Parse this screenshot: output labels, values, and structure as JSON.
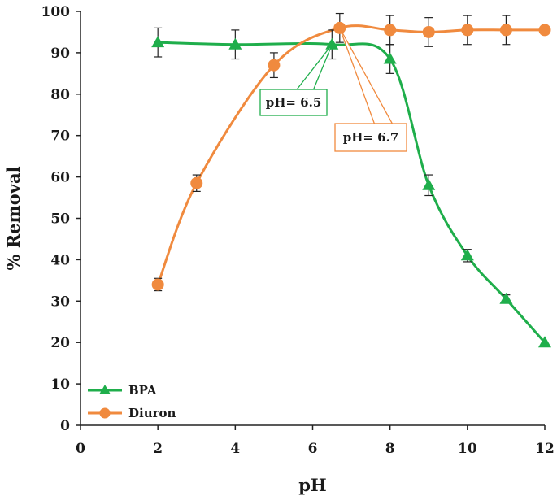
{
  "chart_data": {
    "type": "line",
    "title": "",
    "xlabel": "pH",
    "ylabel": "% Removal",
    "xlim": [
      0,
      12
    ],
    "ylim": [
      0,
      100
    ],
    "xticks": [
      0,
      2,
      4,
      6,
      8,
      10,
      12
    ],
    "yticks": [
      0,
      10,
      20,
      30,
      40,
      50,
      60,
      70,
      80,
      90,
      100
    ],
    "grid": false,
    "legend_position": "bottom-left",
    "series": [
      {
        "name": "BPA",
        "marker": "triangle",
        "color": "#1fae4b",
        "x": [
          2,
          4,
          6.5,
          8,
          9,
          10,
          11,
          12
        ],
        "y": [
          92.5,
          92.0,
          92.0,
          88.5,
          58.0,
          41.0,
          30.5,
          20.0
        ],
        "error": [
          3.5,
          3.5,
          3.5,
          3.5,
          2.5,
          1.5,
          1.0,
          0
        ]
      },
      {
        "name": "Diuron",
        "marker": "circle",
        "color": "#f08a3e",
        "x": [
          2,
          3,
          5,
          6.7,
          8,
          9,
          10,
          11,
          12
        ],
        "y": [
          34.0,
          58.5,
          87.0,
          96.0,
          95.5,
          95.0,
          95.5,
          95.5,
          95.5
        ],
        "error": [
          1.5,
          2.0,
          3.0,
          3.5,
          3.5,
          3.5,
          3.5,
          3.5,
          0
        ]
      }
    ],
    "annotations": [
      {
        "text": "pH= 6.5",
        "series": "BPA",
        "x": 6.5,
        "y": 92.0,
        "color": "#1fae4b"
      },
      {
        "text": "pH= 6.7",
        "series": "Diuron",
        "x": 6.7,
        "y": 96.0,
        "color": "#f08a3e"
      }
    ]
  }
}
